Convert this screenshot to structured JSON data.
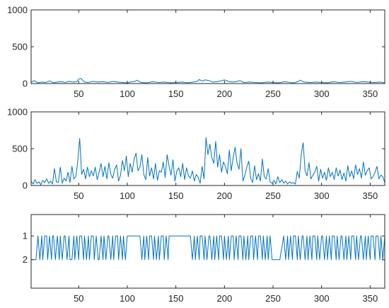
{
  "chart_data": [
    {
      "type": "line",
      "name": "top",
      "xlim": [
        1,
        365
      ],
      "ylim": [
        0,
        1000
      ],
      "xticks": [
        50,
        100,
        150,
        200,
        250,
        300,
        350
      ],
      "yticks": [
        0,
        500,
        1000
      ],
      "ytick_labels": [
        "0",
        "500",
        "1000"
      ],
      "grid": false,
      "color": "#0072BD",
      "series": [
        {
          "x": [
            1,
            4,
            8,
            12,
            16,
            20,
            24,
            28,
            32,
            36,
            40,
            44,
            48,
            50,
            52,
            54,
            56,
            60,
            65,
            70,
            75,
            80,
            85,
            90,
            95,
            100,
            105,
            108,
            110,
            114,
            120,
            126,
            132,
            138,
            144,
            150,
            156,
            162,
            168,
            172,
            174,
            176,
            178,
            180,
            184,
            188,
            192,
            196,
            200,
            204,
            208,
            212,
            216,
            220,
            226,
            232,
            238,
            244,
            250,
            256,
            262,
            268,
            272,
            276,
            278,
            282,
            288,
            294,
            300,
            306,
            312,
            318,
            324,
            330,
            336,
            342,
            348,
            354,
            360,
            365
          ],
          "y": [
            15,
            40,
            10,
            20,
            15,
            35,
            10,
            20,
            25,
            15,
            30,
            20,
            25,
            60,
            70,
            45,
            20,
            15,
            30,
            20,
            25,
            15,
            30,
            20,
            15,
            10,
            25,
            30,
            45,
            15,
            10,
            25,
            15,
            20,
            10,
            15,
            20,
            10,
            20,
            30,
            55,
            40,
            35,
            50,
            40,
            20,
            25,
            35,
            50,
            30,
            20,
            25,
            40,
            15,
            20,
            15,
            10,
            20,
            15,
            10,
            25,
            15,
            10,
            30,
            45,
            20,
            15,
            20,
            15,
            10,
            25,
            15,
            20,
            30,
            15,
            25,
            20,
            15,
            20,
            10
          ]
        }
      ]
    },
    {
      "type": "line",
      "name": "middle",
      "xlim": [
        1,
        365
      ],
      "ylim": [
        0,
        1000
      ],
      "xticks": [
        50,
        100,
        150,
        200,
        250,
        300,
        350
      ],
      "yticks": [
        0,
        500,
        1000
      ],
      "ytick_labels": [
        "0",
        "500",
        "1000"
      ],
      "grid": false,
      "color": "#0072BD",
      "series": [
        {
          "x": [
            1,
            3,
            5,
            7,
            9,
            11,
            13,
            15,
            17,
            19,
            21,
            23,
            25,
            27,
            29,
            31,
            33,
            35,
            37,
            39,
            41,
            43,
            45,
            47,
            49,
            51,
            53,
            55,
            57,
            59,
            61,
            63,
            65,
            67,
            69,
            71,
            73,
            75,
            77,
            79,
            81,
            83,
            85,
            87,
            89,
            91,
            93,
            95,
            97,
            99,
            101,
            103,
            105,
            107,
            109,
            111,
            113,
            115,
            117,
            119,
            121,
            123,
            125,
            127,
            129,
            131,
            133,
            135,
            137,
            139,
            141,
            143,
            145,
            147,
            149,
            151,
            153,
            155,
            157,
            159,
            161,
            163,
            165,
            167,
            169,
            171,
            173,
            175,
            177,
            179,
            181,
            183,
            185,
            187,
            189,
            191,
            193,
            195,
            197,
            199,
            201,
            203,
            205,
            207,
            209,
            211,
            213,
            215,
            217,
            219,
            221,
            223,
            225,
            227,
            229,
            231,
            233,
            235,
            237,
            239,
            241,
            243,
            245,
            247,
            249,
            251,
            253,
            255,
            257,
            259,
            261,
            263,
            265,
            267,
            269,
            271,
            273,
            275,
            277,
            279,
            281,
            283,
            285,
            287,
            289,
            291,
            293,
            295,
            297,
            299,
            301,
            303,
            305,
            307,
            309,
            311,
            313,
            315,
            317,
            319,
            321,
            323,
            325,
            327,
            329,
            331,
            333,
            335,
            337,
            339,
            341,
            343,
            345,
            347,
            349,
            351,
            353,
            355,
            357,
            359,
            361,
            363,
            365
          ],
          "y": [
            60,
            20,
            80,
            30,
            50,
            10,
            70,
            40,
            90,
            30,
            60,
            20,
            230,
            50,
            40,
            250,
            30,
            100,
            60,
            180,
            40,
            260,
            90,
            120,
            330,
            640,
            150,
            220,
            90,
            250,
            120,
            200,
            130,
            250,
            80,
            180,
            300,
            120,
            260,
            90,
            310,
            150,
            100,
            220,
            280,
            60,
            140,
            340,
            200,
            400,
            120,
            300,
            180,
            360,
            440,
            200,
            250,
            420,
            150,
            80,
            380,
            130,
            240,
            90,
            300,
            70,
            200,
            180,
            320,
            110,
            420,
            260,
            140,
            350,
            60,
            200,
            240,
            120,
            300,
            80,
            240,
            130,
            100,
            200,
            60,
            150,
            110,
            30,
            260,
            90,
            650,
            420,
            560,
            380,
            300,
            600,
            250,
            420,
            180,
            320,
            260,
            160,
            480,
            200,
            380,
            520,
            300,
            220,
            500,
            60,
            140,
            250,
            330,
            100,
            40,
            270,
            80,
            160,
            60,
            360,
            120,
            90,
            230,
            50,
            30,
            70,
            20,
            120,
            40,
            80,
            30,
            60,
            20,
            50,
            30,
            40,
            20,
            190,
            100,
            420,
            580,
            200,
            130,
            310,
            90,
            140,
            180,
            260,
            60,
            220,
            100,
            180,
            70,
            240,
            120,
            180,
            80,
            240,
            130,
            210,
            80,
            170,
            60,
            270,
            120,
            200,
            90,
            280,
            150,
            230,
            100,
            320,
            140,
            200,
            240,
            90,
            120,
            180,
            260,
            90,
            140,
            120,
            40
          ]
        }
      ]
    },
    {
      "type": "line",
      "name": "bottom",
      "xlim": [
        1,
        365
      ],
      "ylim": [
        0.1,
        3.2
      ],
      "y_reversed": true,
      "xticks": [
        50,
        100,
        150,
        200,
        250,
        300,
        350
      ],
      "yticks": [
        1,
        2
      ],
      "ytick_labels": [
        "1",
        "2"
      ],
      "grid": false,
      "color": "#0072BD",
      "series": [
        {
          "x": [
            1,
            6,
            8,
            10,
            12,
            13,
            15,
            17,
            18,
            20,
            22,
            23,
            24,
            26,
            28,
            30,
            31,
            33,
            35,
            36,
            38,
            40,
            41,
            43,
            45,
            46,
            48,
            50,
            51,
            53,
            55,
            56,
            58,
            60,
            61,
            63,
            65,
            66,
            68,
            70,
            71,
            73,
            75,
            76,
            78,
            80,
            81,
            83,
            85,
            86,
            88,
            90,
            91,
            93,
            95,
            96,
            98,
            100,
            113,
            115,
            117,
            118,
            120,
            122,
            123,
            125,
            127,
            128,
            130,
            132,
            133,
            135,
            137,
            138,
            140,
            142,
            143,
            145,
            165,
            167,
            169,
            170,
            172,
            174,
            175,
            177,
            179,
            180,
            182,
            184,
            185,
            187,
            189,
            190,
            192,
            194,
            195,
            197,
            199,
            200,
            202,
            204,
            205,
            207,
            209,
            210,
            212,
            214,
            215,
            217,
            219,
            220,
            222,
            224,
            225,
            227,
            229,
            230,
            232,
            234,
            235,
            237,
            239,
            240,
            242,
            244,
            245,
            247,
            249,
            250,
            252,
            254,
            255,
            257,
            261,
            263,
            265,
            266,
            268,
            270,
            271,
            273,
            275,
            276,
            278,
            280,
            281,
            283,
            285,
            286,
            288,
            290,
            291,
            293,
            295,
            296,
            298,
            300,
            301,
            303,
            305,
            306,
            308,
            310,
            311,
            313,
            315,
            316,
            318,
            320,
            321,
            323,
            325,
            326,
            328,
            330,
            331,
            333,
            335,
            336,
            338,
            340,
            341,
            343,
            345,
            346,
            348,
            350,
            351,
            353,
            355,
            356,
            358,
            360,
            361,
            363,
            365
          ],
          "y": [
            2,
            2,
            1,
            2,
            1,
            2,
            1,
            1,
            2,
            1,
            2,
            1,
            1,
            2,
            1,
            2,
            1,
            2,
            1,
            1,
            2,
            1,
            2,
            2,
            1,
            2,
            1,
            2,
            1,
            1,
            2,
            1,
            2,
            1,
            2,
            1,
            1,
            2,
            1,
            2,
            2,
            1,
            2,
            1,
            2,
            1,
            1,
            2,
            1,
            2,
            1,
            1,
            2,
            1,
            2,
            1,
            2,
            1,
            1,
            2,
            1,
            2,
            1,
            2,
            1,
            1,
            2,
            1,
            2,
            1,
            2,
            1,
            1,
            2,
            1,
            2,
            1,
            1,
            1,
            2,
            1,
            2,
            1,
            2,
            1,
            1,
            2,
            1,
            2,
            1,
            1,
            2,
            1,
            2,
            1,
            2,
            1,
            1,
            2,
            1,
            2,
            1,
            2,
            1,
            1,
            2,
            1,
            2,
            1,
            1,
            2,
            1,
            2,
            1,
            2,
            1,
            1,
            2,
            1,
            2,
            1,
            1,
            2,
            1,
            2,
            1,
            2,
            1,
            2,
            2,
            2,
            2,
            2,
            2,
            1,
            2,
            1,
            2,
            1,
            2,
            1,
            1,
            2,
            1,
            2,
            1,
            1,
            2,
            1,
            2,
            1,
            2,
            1,
            1,
            2,
            1,
            2,
            1,
            1,
            2,
            1,
            2,
            1,
            2,
            1,
            1,
            2,
            1,
            2,
            1,
            1,
            2,
            1,
            2,
            1,
            2,
            1,
            1,
            2,
            1,
            2,
            1,
            1,
            2,
            1,
            2,
            1,
            2,
            1,
            1,
            2,
            1,
            1,
            2,
            1,
            2,
            1
          ]
        }
      ]
    }
  ]
}
